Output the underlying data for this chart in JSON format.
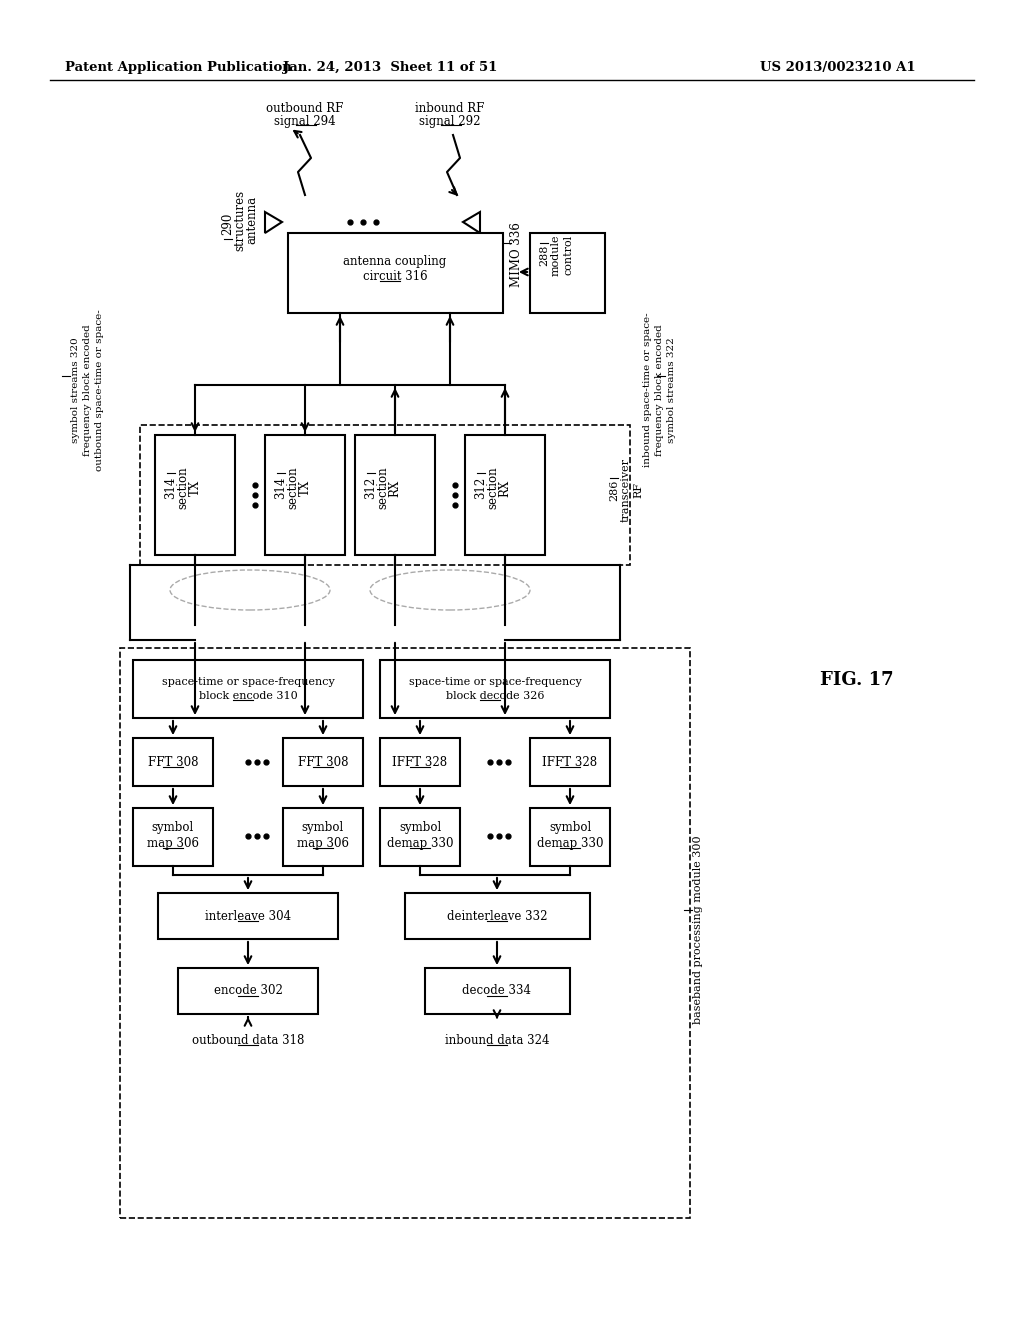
{
  "title_left": "Patent Application Publication",
  "title_mid": "Jan. 24, 2013  Sheet 11 of 51",
  "title_right": "US 2013/0023210 A1",
  "fig_label": "FIG. 17",
  "background": "#ffffff"
}
